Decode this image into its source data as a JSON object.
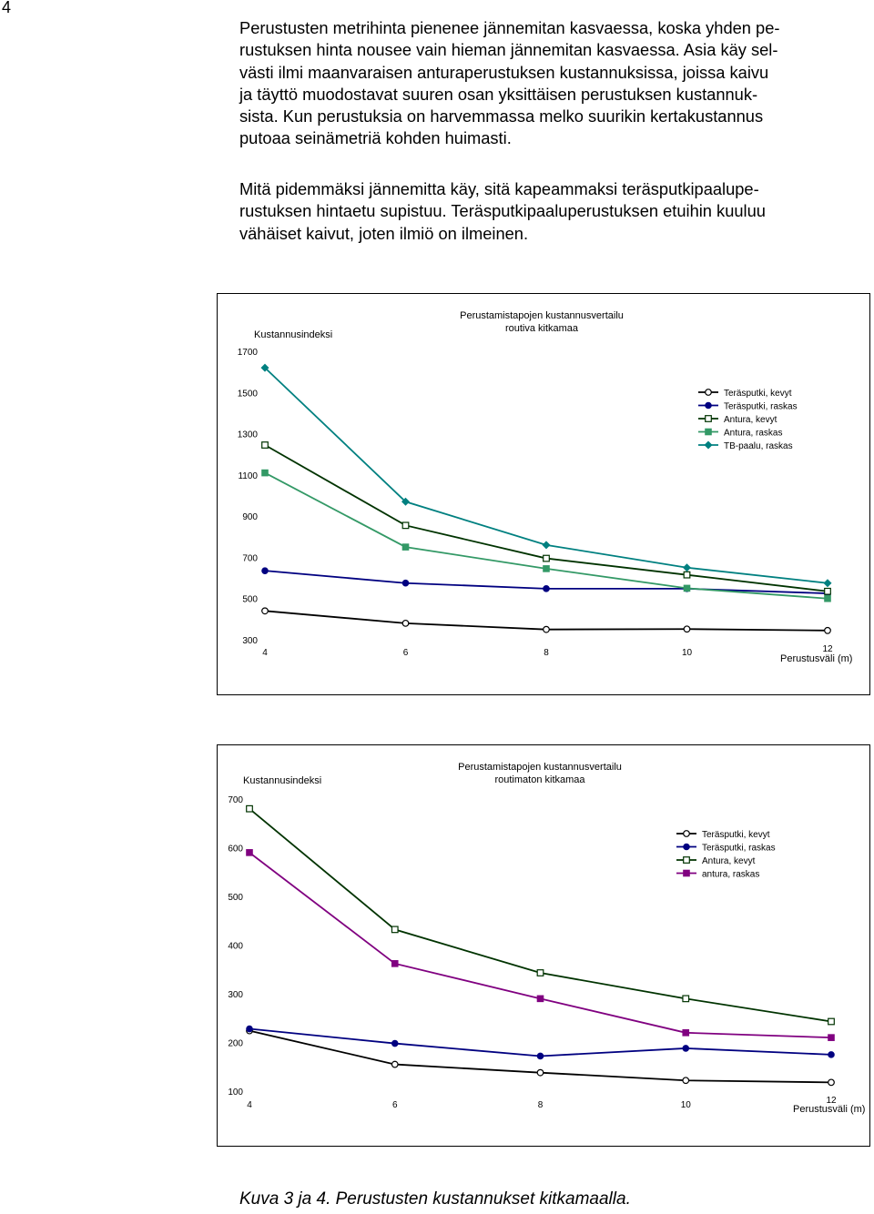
{
  "page_number": "4",
  "paragraphs": [
    {
      "lines": [
        "Perustusten metrihinta pienenee jännemitan kasvaessa, koska yhden pe-",
        "rustuksen hinta nousee vain hieman jännemitan kasvaessa. Asia käy sel-",
        "västi ilmi maanvaraisen anturaperustuksen kustannuksissa, joissa kaivu",
        "ja täyttö muodostavat suuren osan yksittäisen perustuksen kustannuk-",
        "sista. Kun perustuksia on harvemmassa melko suurikin kertakustannus",
        "putoaa seinämetriä kohden huimasti."
      ]
    },
    {
      "lines": [
        "Mitä pidemmäksi jännemitta käy, sitä kapeammaksi teräsputkipaalupe-",
        "rustuksen hintaetu supistuu. Teräsputkipaaluperustuksen etuihin kuuluu",
        "vähäiset kaivut, joten ilmiö on ilmeinen."
      ]
    }
  ],
  "caption": "Kuva 3 ja 4. Perustusten kustannukset kitkamaalla.",
  "chart_data": [
    {
      "type": "line",
      "title": "Perustamistapojen kustannusvertailu",
      "subtitle": "routiva kitkamaa",
      "ylabel": "Kustannusindeksi",
      "xlabel": "Perustusväli (m)",
      "x": [
        4,
        6,
        8,
        10,
        12
      ],
      "xticks": [
        "4",
        "6",
        "8",
        "10",
        "12"
      ],
      "yticks": [
        "300",
        "500",
        "700",
        "900",
        "1100",
        "1300",
        "1500",
        "1700"
      ],
      "ylim": [
        300,
        1700
      ],
      "legend_position": "right",
      "series": [
        {
          "name": "Teräsputki, kevyt",
          "values": [
            440,
            380,
            350,
            352,
            345
          ],
          "color": "#000000",
          "marker": "open-circle"
        },
        {
          "name": "Teräsputki, raskas",
          "values": [
            635,
            575,
            548,
            548,
            525
          ],
          "color": "#000080",
          "marker": "filled-circle"
        },
        {
          "name": "Antura, kevyt",
          "values": [
            1245,
            855,
            695,
            615,
            535
          ],
          "color": "#003300",
          "marker": "open-square"
        },
        {
          "name": "Antura, raskas",
          "values": [
            1110,
            750,
            645,
            550,
            500
          ],
          "color": "#339966",
          "marker": "filled-square"
        },
        {
          "name": "TB-paalu, raskas",
          "values": [
            1620,
            970,
            760,
            650,
            575
          ],
          "color": "#008080",
          "marker": "diamond"
        }
      ]
    },
    {
      "type": "line",
      "title": "Perustamistapojen kustannusvertailu",
      "subtitle": "routimaton kitkamaa",
      "ylabel": "Kustannusindeksi",
      "xlabel": "Perustusväli (m)",
      "x": [
        4,
        6,
        8,
        10,
        12
      ],
      "xticks": [
        "4",
        "6",
        "8",
        "10",
        "12"
      ],
      "yticks": [
        "100",
        "200",
        "300",
        "400",
        "500",
        "600",
        "700"
      ],
      "ylim": [
        100,
        700
      ],
      "legend_position": "right",
      "series": [
        {
          "name": "Teräsputki, kevyt",
          "values": [
            224,
            155,
            138,
            122,
            118
          ],
          "color": "#000000",
          "marker": "open-circle"
        },
        {
          "name": "Teräsputki, raskas",
          "values": [
            228,
            198,
            172,
            188,
            175
          ],
          "color": "#000080",
          "marker": "filled-circle"
        },
        {
          "name": "Antura, kevyt",
          "values": [
            680,
            432,
            343,
            290,
            243
          ],
          "color": "#003300",
          "marker": "open-square"
        },
        {
          "name": "antura, raskas",
          "values": [
            590,
            362,
            290,
            220,
            210
          ],
          "color": "#800080",
          "marker": "filled-square"
        }
      ]
    }
  ]
}
